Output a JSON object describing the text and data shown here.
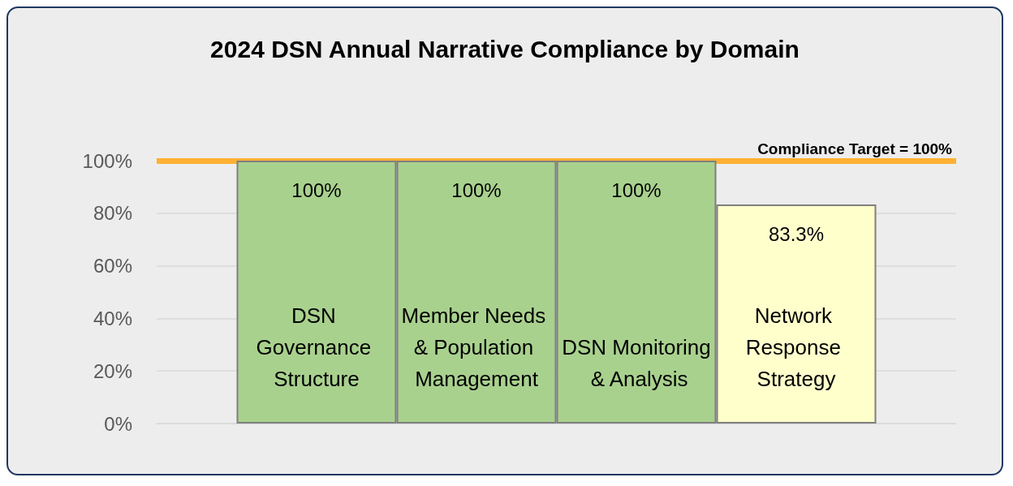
{
  "chart_data": {
    "type": "bar",
    "title": "2024 DSN Annual Narrative Compliance by Domain",
    "categories": [
      "DSN Governance Structure",
      "Member Needs & Population Management",
      "DSN Monitoring & Analysis",
      "Network Response Strategy"
    ],
    "values": [
      100,
      100,
      100,
      83.3
    ],
    "colors": [
      "#a9d18e",
      "#a9d18e",
      "#a9d18e",
      "#ffffcc"
    ],
    "value_labels": [
      "100%",
      "100%",
      "100%",
      "83.3%"
    ],
    "ylim": [
      0,
      100
    ],
    "yticks": [
      {
        "value": 0,
        "label": "0%"
      },
      {
        "value": 20,
        "label": "20%"
      },
      {
        "value": 40,
        "label": "40%"
      },
      {
        "value": 60,
        "label": "60%"
      },
      {
        "value": 80,
        "label": "80%"
      },
      {
        "value": 100,
        "label": "100%"
      }
    ],
    "ref_lines": [
      {
        "axis": "y",
        "value": 100,
        "label": "Compliance Target = 100%",
        "color": "#ffb133"
      }
    ],
    "grid": "y"
  }
}
